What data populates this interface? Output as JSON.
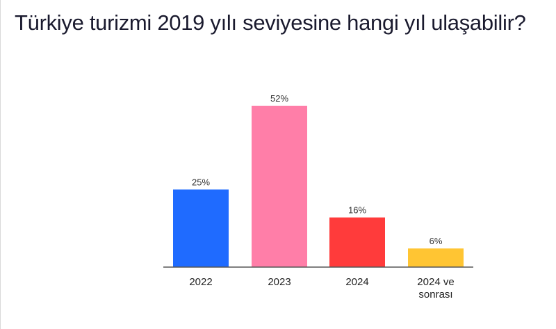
{
  "chart_data": {
    "type": "bar",
    "title": "Türkiye turizmi 2019 yılı seviyesine hangi yıl ulaşabilir?",
    "categories": [
      "2022",
      "2023",
      "2024",
      "2024 ve sonrası"
    ],
    "category_lines": [
      [
        "2022"
      ],
      [
        "2023"
      ],
      [
        "2024"
      ],
      [
        "2024 ve",
        "sonrası"
      ]
    ],
    "values": [
      25,
      52,
      16,
      6
    ],
    "value_labels": [
      "25%",
      "52%",
      "16%",
      "6%"
    ],
    "unit": "%",
    "colors": [
      "#1f6bff",
      "#ff7ea8",
      "#ff3b3b",
      "#ffc533"
    ],
    "xlabel": "",
    "ylabel": "",
    "ylim": [
      0,
      52
    ],
    "grid": false,
    "legend": "none"
  }
}
